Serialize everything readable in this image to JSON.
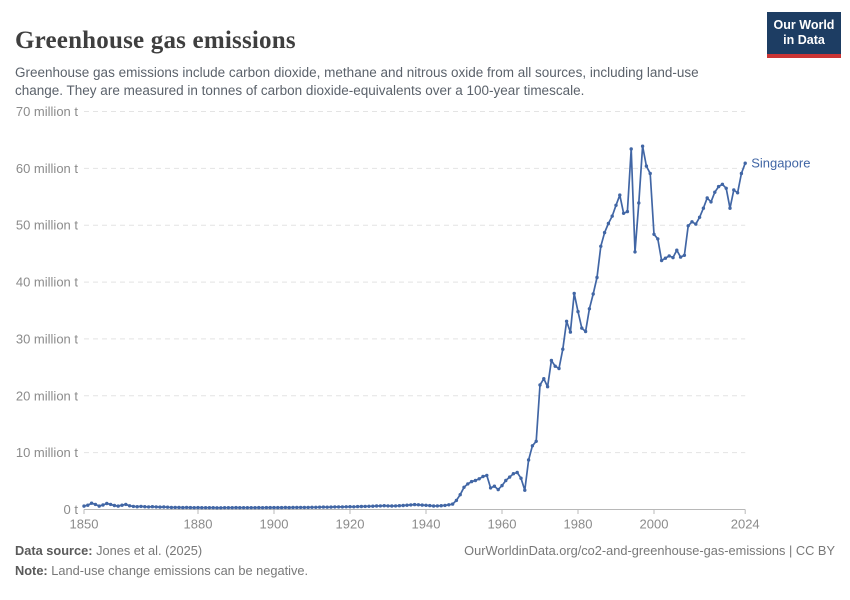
{
  "header": {
    "title": "Greenhouse gas emissions",
    "subtitle": "Greenhouse gas emissions include carbon dioxide, methane and nitrous oxide from all sources, including land-use change. They are measured in tonnes of carbon dioxide-equivalents over a 100-year timescale."
  },
  "logo": {
    "line1": "Our World",
    "line2": "in Data",
    "bg_color": "#1d3d63",
    "accent_color": "#cb3434"
  },
  "chart_data": {
    "type": "line",
    "title": "Greenhouse gas emissions",
    "entity_label": "Singapore",
    "unit": "million t",
    "line_color": "#4166a5",
    "grid_color": "#e4e4e4",
    "axis_color": "#b8b8b8",
    "tick_label_color": "#8b8b8b",
    "start_year": 1850,
    "end_year": 2024,
    "ylim": [
      0,
      70
    ],
    "grid": "horizontal-dashed",
    "legend_position": "end-of-line-label",
    "xticks": [
      1850,
      1880,
      1900,
      1920,
      1940,
      1960,
      1980,
      2000,
      2024
    ],
    "yticks": [
      {
        "v": 0,
        "label": "0 t"
      },
      {
        "v": 10,
        "label": "10 million t"
      },
      {
        "v": 20,
        "label": "20 million t"
      },
      {
        "v": 30,
        "label": "30 million t"
      },
      {
        "v": 40,
        "label": "40 million t"
      },
      {
        "v": 50,
        "label": "50 million t"
      },
      {
        "v": 60,
        "label": "60 million t"
      },
      {
        "v": 70,
        "label": "70 million t"
      }
    ],
    "series": [
      {
        "name": "Singapore",
        "start_year": 1850,
        "values_million_t": [
          0.6,
          0.75,
          1.1,
          0.9,
          0.6,
          0.8,
          1.05,
          0.9,
          0.7,
          0.6,
          0.75,
          0.9,
          0.65,
          0.55,
          0.5,
          0.55,
          0.5,
          0.45,
          0.5,
          0.45,
          0.42,
          0.44,
          0.4,
          0.36,
          0.37,
          0.35,
          0.34,
          0.36,
          0.33,
          0.32,
          0.33,
          0.31,
          0.32,
          0.31,
          0.32,
          0.3,
          0.3,
          0.31,
          0.32,
          0.31,
          0.33,
          0.32,
          0.31,
          0.32,
          0.31,
          0.32,
          0.33,
          0.32,
          0.33,
          0.34,
          0.33,
          0.34,
          0.33,
          0.35,
          0.34,
          0.35,
          0.36,
          0.37,
          0.36,
          0.37,
          0.38,
          0.39,
          0.41,
          0.42,
          0.41,
          0.43,
          0.45,
          0.46,
          0.45,
          0.47,
          0.49,
          0.48,
          0.51,
          0.53,
          0.54,
          0.56,
          0.58,
          0.61,
          0.63,
          0.66,
          0.64,
          0.61,
          0.63,
          0.66,
          0.71,
          0.76,
          0.81,
          0.86,
          0.82,
          0.77,
          0.73,
          0.68,
          0.62,
          0.64,
          0.67,
          0.72,
          0.82,
          0.95,
          1.6,
          2.6,
          3.9,
          4.5,
          4.9,
          5.1,
          5.4,
          5.8,
          6.0,
          3.8,
          4.1,
          3.5,
          4.2,
          5.1,
          5.7,
          6.3,
          6.5,
          5.5,
          3.4,
          8.7,
          11.2,
          12.0,
          21.9,
          23.0,
          21.6,
          26.2,
          25.2,
          24.8,
          28.2,
          33.1,
          31.2,
          38.0,
          34.8,
          31.9,
          31.3,
          35.3,
          37.9,
          40.8,
          46.3,
          48.7,
          50.3,
          51.6,
          53.5,
          55.3,
          52.1,
          52.4,
          63.4,
          45.3,
          53.9,
          63.9,
          60.4,
          59.1,
          48.4,
          47.6,
          43.8,
          44.2,
          44.6,
          44.3,
          45.6,
          44.4,
          44.7,
          49.9,
          50.6,
          50.2,
          51.4,
          53.0,
          54.8,
          54.1,
          55.8,
          56.8,
          57.2,
          56.5,
          53.0,
          56.2,
          55.7,
          59.1,
          60.9
        ]
      }
    ]
  },
  "footer": {
    "data_source_label": "Data source:",
    "data_source_value": "Jones et al. (2025)",
    "url_text": "OurWorldinData.org/co2-and-greenhouse-gas-emissions",
    "separator": "|",
    "license": "CC BY",
    "note_label": "Note:",
    "note_value": "Land-use change emissions can be negative."
  }
}
